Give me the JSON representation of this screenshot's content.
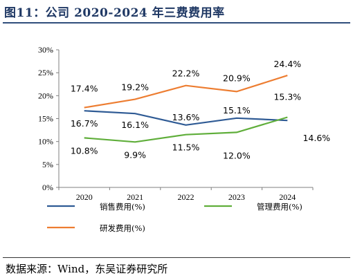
{
  "title": "图11：公司 2020-2024 年三费费用率",
  "source": "数据来源：Wind，东吴证券研究所",
  "chart_data": {
    "type": "line",
    "x": [
      "2020",
      "2021",
      "2022",
      "2023",
      "2024"
    ],
    "y_ticks": [
      "0%",
      "5%",
      "10%",
      "15%",
      "20%",
      "25%",
      "30%"
    ],
    "ylim": [
      0,
      30
    ],
    "grid": false,
    "legend_position": "bottom",
    "series": [
      {
        "name": "销售费用(%)",
        "color": "#2e5a94",
        "values": [
          16.7,
          16.1,
          13.6,
          15.1,
          14.6
        ],
        "labels": [
          "16.7%",
          "16.1%",
          "13.6%",
          "15.1%",
          "14.6%"
        ]
      },
      {
        "name": "管理费用(%)",
        "color": "#5fae3a",
        "values": [
          10.8,
          9.9,
          11.5,
          12.0,
          15.3
        ],
        "labels": [
          "10.8%",
          "9.9%",
          "11.5%",
          "12.0%",
          "15.3%"
        ]
      },
      {
        "name": "研发费用(%)",
        "color": "#ed7d31",
        "values": [
          17.4,
          19.2,
          22.2,
          20.9,
          24.4
        ],
        "labels": [
          "17.4%",
          "19.2%",
          "22.2%",
          "20.9%",
          "24.4%"
        ]
      }
    ]
  }
}
